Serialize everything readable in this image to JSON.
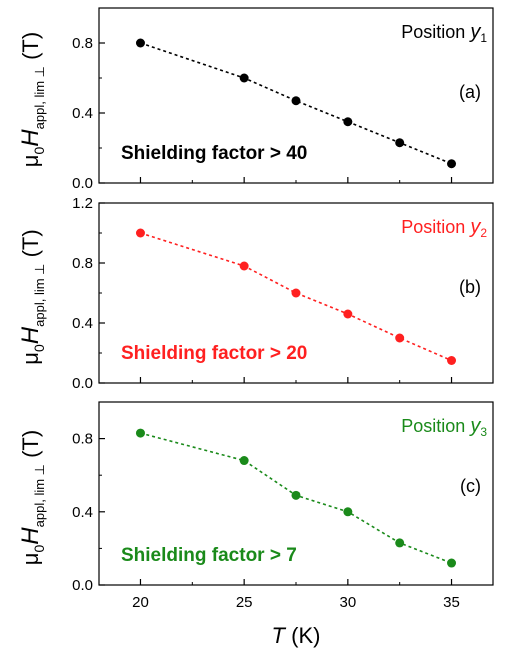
{
  "chart_data": [
    {
      "type": "line",
      "panel": "(a)",
      "position_label": "Position ",
      "position_var": "y",
      "position_sub": "1",
      "annotation": "Shielding factor > 40",
      "color": "#000000",
      "x": [
        20,
        25,
        27.5,
        30,
        32.5,
        35
      ],
      "y": [
        0.8,
        0.6,
        0.47,
        0.35,
        0.23,
        0.11
      ],
      "ylim": [
        0,
        1.0
      ],
      "yticks": [
        "0.0",
        "0.4",
        "0.8"
      ],
      "ytick_values": [
        0,
        0.4,
        0.8
      ],
      "ylabel": {
        "mu": "μ",
        "sub0": "0",
        "H": "H",
        "sub": "appl, lim ⊥",
        "unit": " (T)"
      }
    },
    {
      "type": "line",
      "panel": "(b)",
      "position_label": "Position ",
      "position_var": "y",
      "position_sub": "2",
      "annotation": "Shielding factor > 20",
      "color": "#ff2020",
      "x": [
        20,
        25,
        27.5,
        30,
        32.5,
        35
      ],
      "y": [
        1.0,
        0.78,
        0.6,
        0.46,
        0.3,
        0.15
      ],
      "ylim": [
        0,
        1.2
      ],
      "yticks": [
        "0.0",
        "0.4",
        "0.8",
        "1.2"
      ],
      "ytick_values": [
        0,
        0.4,
        0.8,
        1.2
      ],
      "ylabel": {
        "mu": "μ",
        "sub0": "0",
        "H": "H",
        "sub": "appl, lim ⊥",
        "unit": " (T)"
      }
    },
    {
      "type": "line",
      "panel": "(c)",
      "position_label": "Position ",
      "position_var": "y",
      "position_sub": "3",
      "annotation": "Shielding factor > 7",
      "color": "#1a8a1a",
      "x": [
        20,
        25,
        27.5,
        30,
        32.5,
        35
      ],
      "y": [
        0.83,
        0.68,
        0.49,
        0.4,
        0.23,
        0.12
      ],
      "ylim": [
        0,
        1.0
      ],
      "yticks": [
        "0.0",
        "0.4",
        "0.8"
      ],
      "ytick_values": [
        0,
        0.4,
        0.8
      ],
      "ylabel": {
        "mu": "μ",
        "sub0": "0",
        "H": "H",
        "sub": "appl, lim ⊥",
        "unit": " (T)"
      }
    }
  ],
  "xaxis": {
    "xlim": [
      18,
      37
    ],
    "xticks": [
      "20",
      "25",
      "30",
      "35"
    ],
    "xtick_values": [
      20,
      25,
      30,
      35
    ],
    "minor_xtick_values": [
      22.5,
      27.5,
      32.5
    ],
    "xlabel_var": "T",
    "xlabel_unit": " (K)"
  }
}
